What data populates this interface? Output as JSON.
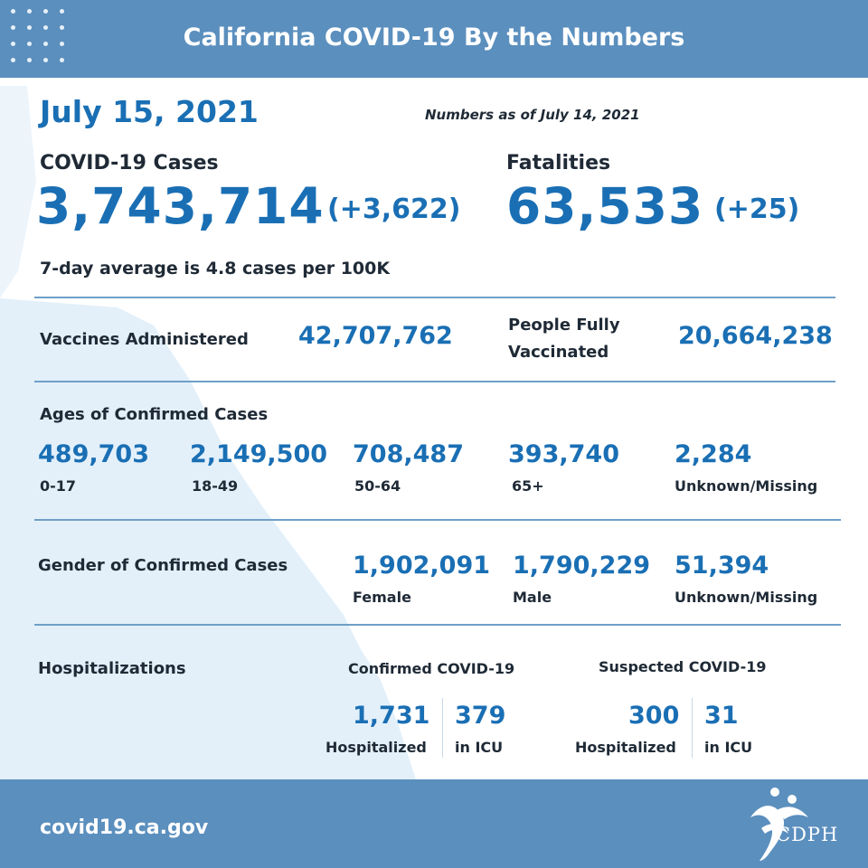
{
  "header": {
    "title": "California COVID-19 By the Numbers"
  },
  "date": "July 15, 2021",
  "as_of": "Numbers as of July 14, 2021",
  "cases": {
    "label": "COVID-19 Cases",
    "value": "3,743,714",
    "change": "(+3,622)"
  },
  "fatalities": {
    "label": "Fatalities",
    "value": "63,533",
    "change": "(+25)"
  },
  "seven_day_avg": "7-day average is 4.8 cases per 100K",
  "vaccines": {
    "administered_label": "Vaccines Administered",
    "administered_value": "42,707,762",
    "fully_label_line1": "People Fully",
    "fully_label_line2": "Vaccinated",
    "fully_value": "20,664,238"
  },
  "ages": {
    "title": "Ages of Confirmed Cases",
    "groups": [
      {
        "value": "489,703",
        "label": "0-17"
      },
      {
        "value": "2,149,500",
        "label": "18-49"
      },
      {
        "value": "708,487",
        "label": "50-64"
      },
      {
        "value": "393,740",
        "label": "65+"
      },
      {
        "value": "2,284",
        "label": "Unknown/Missing"
      }
    ]
  },
  "gender": {
    "title": "Gender of Confirmed Cases",
    "groups": [
      {
        "value": "1,902,091",
        "label": "Female"
      },
      {
        "value": "1,790,229",
        "label": "Male"
      },
      {
        "value": "51,394",
        "label": "Unknown/Missing"
      }
    ]
  },
  "hospitalizations": {
    "title": "Hospitalizations",
    "confirmed": {
      "label": "Confirmed COVID-19",
      "hospitalized_value": "1,731",
      "hospitalized_label": "Hospitalized",
      "icu_value": "379",
      "icu_label": "in ICU"
    },
    "suspected": {
      "label": "Suspected COVID-19",
      "hospitalized_value": "300",
      "hospitalized_label": "Hospitalized",
      "icu_value": "31",
      "icu_label": "in ICU"
    }
  },
  "footer": {
    "url": "covid19.ca.gov"
  },
  "logo": {
    "text": "CDPH"
  },
  "colors": {
    "header_blue": "#5b8fbe",
    "number_blue": "#1a6fb4",
    "map_tint": "#e3f0fa"
  }
}
